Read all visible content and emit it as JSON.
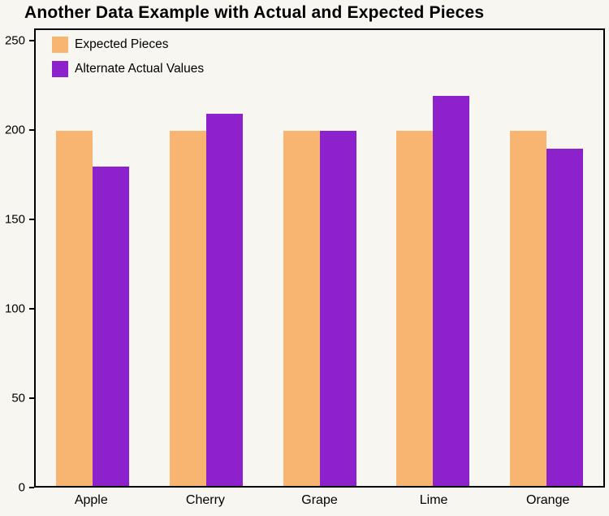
{
  "title": "Another Data Example with Actual and Expected Pieces",
  "colors": {
    "background": "#f7f6f1",
    "frame": "#000000",
    "expected_series": "#f8b572",
    "actual_series": "#8d22cc",
    "text": "#000000"
  },
  "chart_data": {
    "type": "bar",
    "title": "Another Data Example with Actual and Expected Pieces",
    "categories": [
      "Apple",
      "Cherry",
      "Grape",
      "Lime",
      "Orange"
    ],
    "series": [
      {
        "name": "Expected Pieces",
        "color": "#f8b572",
        "values": [
          200,
          200,
          200,
          200,
          200
        ]
      },
      {
        "name": "Alternate Actual Values",
        "color": "#8d22cc",
        "values": [
          180,
          210,
          200,
          220,
          190
        ]
      }
    ],
    "xlabel": "",
    "ylabel": "",
    "ylim": [
      0,
      257
    ],
    "yticks": [
      0,
      50,
      100,
      150,
      200,
      250
    ],
    "grid": false,
    "legend_position": "top-left-inside"
  }
}
